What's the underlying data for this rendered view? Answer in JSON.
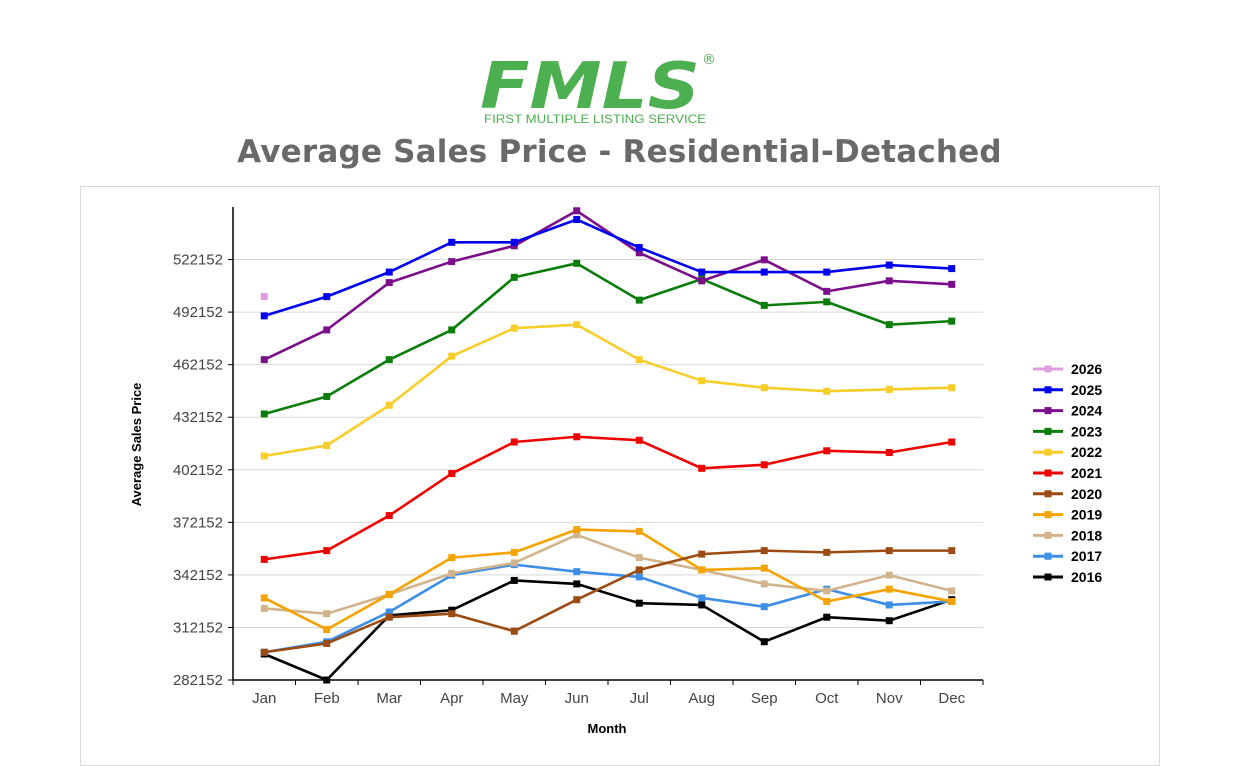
{
  "header": {
    "logo_text": "FMLS",
    "logo_registered": "®",
    "logo_subtitle": "FIRST MULTIPLE LISTING SERVICE",
    "title": "Average Sales Price - Residential-Detached"
  },
  "chart_data": {
    "type": "line",
    "title": "Average Sales Price - Residential-Detached",
    "xlabel": "Month",
    "ylabel": "Average Sales Price",
    "categories": [
      "Jan",
      "Feb",
      "Mar",
      "Apr",
      "May",
      "Jun",
      "Jul",
      "Aug",
      "Sep",
      "Oct",
      "Nov",
      "Dec"
    ],
    "ylim": [
      282152,
      552152
    ],
    "yticks": [
      282152,
      312152,
      342152,
      372152,
      402152,
      432152,
      462152,
      492152,
      522152
    ],
    "grid": true,
    "legend_position": "right",
    "series": [
      {
        "name": "2026",
        "color": "#e19de0",
        "values": [
          501000,
          null,
          null,
          null,
          null,
          null,
          null,
          null,
          null,
          null,
          null,
          null
        ]
      },
      {
        "name": "2025",
        "color": "#0000ee",
        "values": [
          490000,
          501000,
          515000,
          532000,
          532000,
          545000,
          529000,
          515000,
          515000,
          515000,
          519000,
          517000
        ]
      },
      {
        "name": "2024",
        "color": "#7b0f8a",
        "values": [
          465000,
          482000,
          509000,
          521000,
          530000,
          550000,
          526000,
          510000,
          522000,
          504000,
          510000,
          508000
        ]
      },
      {
        "name": "2023",
        "color": "#0a7d0a",
        "values": [
          434000,
          444000,
          465000,
          482000,
          512000,
          520000,
          499000,
          511000,
          496000,
          498000,
          485000,
          487000
        ]
      },
      {
        "name": "2022",
        "color": "#f7cd2a",
        "values": [
          410000,
          416000,
          439000,
          467000,
          483000,
          485000,
          465000,
          453000,
          449000,
          447000,
          448000,
          449000
        ]
      },
      {
        "name": "2021",
        "color": "#ee0000",
        "values": [
          351000,
          356000,
          376000,
          400000,
          418000,
          421000,
          419000,
          403000,
          405000,
          413000,
          412000,
          418000
        ]
      },
      {
        "name": "2020",
        "color": "#9c4c12",
        "values": [
          298000,
          303000,
          318000,
          320000,
          310000,
          328000,
          345000,
          354000,
          356000,
          355000,
          356000,
          356000
        ]
      },
      {
        "name": "2019",
        "color": "#f5a300",
        "values": [
          329000,
          311000,
          331000,
          352000,
          355000,
          368000,
          367000,
          345000,
          346000,
          327000,
          334000,
          327000
        ]
      },
      {
        "name": "2018",
        "color": "#d2b48c",
        "values": [
          323000,
          320000,
          331000,
          343000,
          349000,
          365000,
          352000,
          345000,
          337000,
          333000,
          342000,
          333000
        ]
      },
      {
        "name": "2017",
        "color": "#3d8ee6",
        "values": [
          298000,
          304000,
          321000,
          342000,
          348000,
          344000,
          341000,
          329000,
          324000,
          334000,
          325000,
          327000
        ]
      },
      {
        "name": "2016",
        "color": "#000000",
        "values": [
          297000,
          282152,
          319000,
          322000,
          339000,
          337000,
          326000,
          325000,
          304000,
          318000,
          316000,
          328000
        ]
      }
    ]
  }
}
